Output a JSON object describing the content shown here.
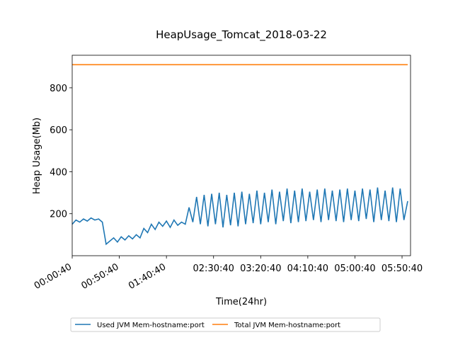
{
  "chart_data": {
    "type": "line",
    "title": "HeapUsage_Tomcat_2018-03-22",
    "x_label": "Time(24hr)",
    "y_label": "Heap Usage(Mb)",
    "x": [
      "00:00:40",
      "00:04:40",
      "00:08:40",
      "00:12:40",
      "00:16:40",
      "00:20:40",
      "00:24:40",
      "00:28:40",
      "00:32:40",
      "00:36:40",
      "00:40:40",
      "00:44:40",
      "00:48:40",
      "00:52:40",
      "00:56:40",
      "01:00:40",
      "01:04:40",
      "01:08:40",
      "01:12:40",
      "01:16:40",
      "01:20:40",
      "01:24:40",
      "01:28:40",
      "01:32:40",
      "01:36:40",
      "01:40:40",
      "01:44:40",
      "01:48:40",
      "01:52:40",
      "01:56:40",
      "02:00:40",
      "02:04:40",
      "02:08:40",
      "02:12:40",
      "02:16:40",
      "02:20:40",
      "02:24:40",
      "02:28:40",
      "02:32:40",
      "02:36:40",
      "02:40:40",
      "02:44:40",
      "02:48:40",
      "02:52:40",
      "02:56:40",
      "03:00:40",
      "03:04:40",
      "03:08:40",
      "03:12:40",
      "03:16:40",
      "03:20:40",
      "03:24:40",
      "03:28:40",
      "03:32:40",
      "03:36:40",
      "03:40:40",
      "03:44:40",
      "03:48:40",
      "03:52:40",
      "03:56:40",
      "04:00:40",
      "04:04:40",
      "04:08:40",
      "04:12:40",
      "04:16:40",
      "04:20:40",
      "04:24:40",
      "04:28:40",
      "04:32:40",
      "04:36:40",
      "04:40:40",
      "04:44:40",
      "04:48:40",
      "04:52:40",
      "04:56:40",
      "05:00:40",
      "05:04:40",
      "05:08:40",
      "05:12:40",
      "05:16:40",
      "05:20:40",
      "05:24:40",
      "05:28:40",
      "05:32:40",
      "05:36:40",
      "05:40:40",
      "05:44:40",
      "05:48:40",
      "05:52:40",
      "05:56:40"
    ],
    "series": [
      {
        "name": "Used JVM Mem-hostname:port",
        "color": "#1f77b4",
        "values": [
          150,
          170,
          160,
          175,
          165,
          180,
          170,
          175,
          160,
          55,
          70,
          85,
          65,
          90,
          75,
          95,
          80,
          100,
          85,
          130,
          110,
          150,
          125,
          160,
          140,
          165,
          135,
          170,
          145,
          160,
          150,
          230,
          160,
          280,
          150,
          290,
          140,
          295,
          150,
          300,
          135,
          290,
          145,
          300,
          140,
          305,
          150,
          295,
          155,
          310,
          150,
          300,
          160,
          315,
          150,
          305,
          165,
          320,
          155,
          310,
          160,
          320,
          165,
          305,
          170,
          315,
          160,
          320,
          170,
          310,
          165,
          315,
          160,
          320,
          170,
          310,
          165,
          320,
          175,
          315,
          160,
          325,
          170,
          310,
          165,
          325,
          160,
          320,
          170,
          260
        ]
      },
      {
        "name": "Total JVM Mem-hostname:port",
        "color": "#ff7f0e",
        "values": [
          910,
          910,
          910,
          910,
          910,
          910,
          910,
          910,
          910,
          910,
          910,
          910,
          910,
          910,
          910,
          910,
          910,
          910,
          910,
          910,
          910,
          910,
          910,
          910,
          910,
          910,
          910,
          910,
          910,
          910,
          910,
          910,
          910,
          910,
          910,
          910,
          910,
          910,
          910,
          910,
          910,
          910,
          910,
          910,
          910,
          910,
          910,
          910,
          910,
          910,
          910,
          910,
          910,
          910,
          910,
          910,
          910,
          910,
          910,
          910,
          910,
          910,
          910,
          910,
          910,
          910,
          910,
          910,
          910,
          910,
          910,
          910,
          910,
          910,
          910,
          910,
          910,
          910,
          910,
          910,
          910,
          910,
          910,
          910,
          910,
          910,
          910,
          910,
          910,
          910
        ]
      }
    ],
    "xlim": [
      "00:00:40",
      "05:59:40"
    ],
    "xticks": [
      "00:00:40",
      "00:50:40",
      "01:40:40",
      "02:30:40",
      "03:20:40",
      "04:10:40",
      "05:00:40",
      "05:50:40"
    ],
    "ylim": [
      0,
      955
    ],
    "yticks": [
      200,
      400,
      600,
      800
    ],
    "grid": false,
    "legend": "lower center"
  }
}
